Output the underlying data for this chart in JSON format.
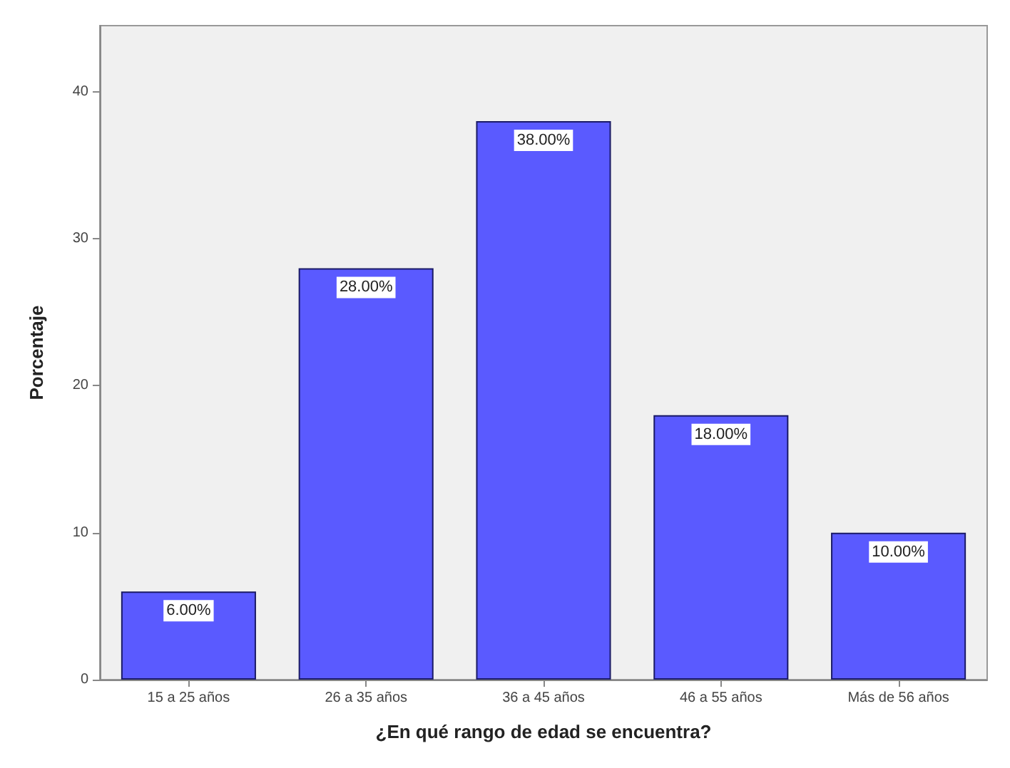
{
  "chart_data": {
    "type": "bar",
    "categories": [
      "15 a 25 años",
      "26 a 35 años",
      "36 a 45 años",
      "46 a 55 años",
      "Más de 56 años"
    ],
    "values": [
      6,
      28,
      38,
      18,
      10
    ],
    "value_labels": [
      "6.00%",
      "28.00%",
      "38.00%",
      "18.00%",
      "10.00%"
    ],
    "color": "#5a5aff",
    "xlabel": "¿En qué rango de edad se encuentra?",
    "ylabel": "Porcentaje",
    "ylim": [
      0,
      44.5
    ],
    "yticks": [
      0,
      10,
      20,
      30,
      40
    ],
    "grid": false
  }
}
